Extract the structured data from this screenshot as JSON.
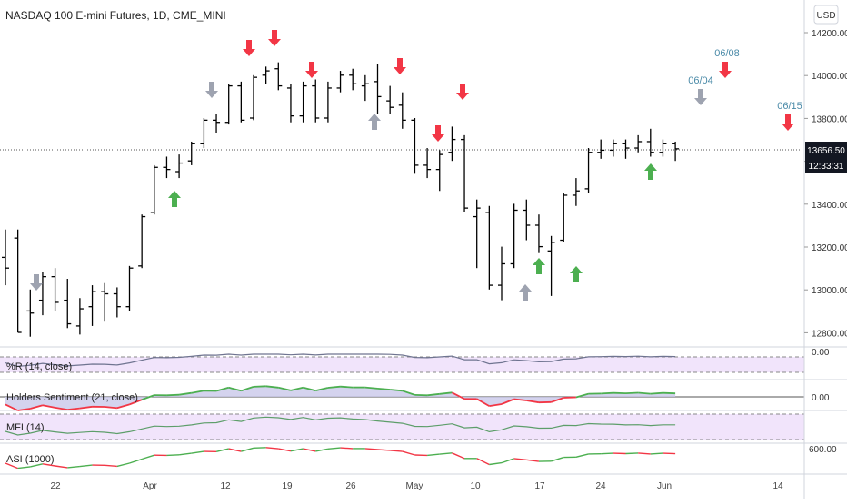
{
  "header": {
    "symbol_title": "NASDAQ 100 E-mini Futures, 1D, CME_MINI",
    "currency_button": "USD"
  },
  "colors": {
    "bull_arrow": "#4caf50",
    "bear_arrow": "#f23645",
    "neutral_arrow": "#9ea3b0",
    "price_bar": "#000000",
    "price_badge": "#131722",
    "annotation_text": "#4a8aa8",
    "pane_fill": "#f1e4fb",
    "holders_fill": "#c9c8ea",
    "line_up": "#4caf50",
    "line_down": "#f23645",
    "indicator_line": "#6f7490",
    "mfi_line": "#5d9e6a"
  },
  "price_axis": {
    "ticks": [
      "14200.00",
      "14000.00",
      "13800.00",
      "13600.00",
      "13400.00",
      "13200.00",
      "13000.00",
      "12800.00"
    ],
    "last_price": "13656.50",
    "countdown": "12:33:31"
  },
  "time_axis": {
    "labels": [
      "22",
      "Apr",
      "12",
      "19",
      "26",
      "May",
      "10",
      "17",
      "24",
      "Jun",
      "14"
    ]
  },
  "annotations": [
    {
      "label": "06/08",
      "type": "bear"
    },
    {
      "label": "06/04",
      "type": "neutral"
    },
    {
      "label": "06/15",
      "type": "bear"
    }
  ],
  "indicators": [
    {
      "name": "%R (14, close)",
      "axis_value": "0.00"
    },
    {
      "name": "Holders Sentiment (21, close)",
      "axis_value": "0.00"
    },
    {
      "name": "MFI (14)",
      "axis_value": ""
    },
    {
      "name": "ASI (1000)",
      "axis_value": "600.00"
    }
  ],
  "chart_data": {
    "type": "ohlc",
    "series": [
      {
        "date": "Mar 17",
        "open": 13150,
        "high": 13280,
        "low": 13020,
        "close": 13100
      },
      {
        "date": "Mar 18",
        "open": 13240,
        "high": 13280,
        "low": 12800,
        "close": 12800
      },
      {
        "date": "Mar 19",
        "open": 12900,
        "high": 13000,
        "low": 12780,
        "close": 12890
      },
      {
        "date": "Mar 22",
        "open": 12950,
        "high": 13080,
        "low": 12880,
        "close": 13060
      },
      {
        "date": "Mar 23",
        "open": 13060,
        "high": 13100,
        "low": 12900,
        "close": 12940
      },
      {
        "date": "Mar 24",
        "open": 12950,
        "high": 13050,
        "low": 12820,
        "close": 12840
      },
      {
        "date": "Mar 25",
        "open": 12830,
        "high": 12960,
        "low": 12790,
        "close": 12910
      },
      {
        "date": "Mar 26",
        "open": 12920,
        "high": 13020,
        "low": 12830,
        "close": 12990
      },
      {
        "date": "Mar 29",
        "open": 12990,
        "high": 13030,
        "low": 12850,
        "close": 12980
      },
      {
        "date": "Mar 30",
        "open": 12980,
        "high": 13010,
        "low": 12870,
        "close": 12920
      },
      {
        "date": "Mar 31",
        "open": 12920,
        "high": 13110,
        "low": 12900,
        "close": 13100
      },
      {
        "date": "Apr 1",
        "open": 13110,
        "high": 13350,
        "low": 13100,
        "close": 13340
      },
      {
        "date": "Apr 5",
        "open": 13360,
        "high": 13580,
        "low": 13350,
        "close": 13570
      },
      {
        "date": "Apr 6",
        "open": 13570,
        "high": 13620,
        "low": 13520,
        "close": 13560
      },
      {
        "date": "Apr 7",
        "open": 13550,
        "high": 13630,
        "low": 13520,
        "close": 13590
      },
      {
        "date": "Apr 8",
        "open": 13600,
        "high": 13690,
        "low": 13580,
        "close": 13680
      },
      {
        "date": "Apr 9",
        "open": 13680,
        "high": 13800,
        "low": 13660,
        "close": 13790
      },
      {
        "date": "Apr 12",
        "open": 13790,
        "high": 13820,
        "low": 13730,
        "close": 13780
      },
      {
        "date": "Apr 13",
        "open": 13780,
        "high": 13960,
        "low": 13770,
        "close": 13950
      },
      {
        "date": "Apr 14",
        "open": 13950,
        "high": 13970,
        "low": 13780,
        "close": 13790
      },
      {
        "date": "Apr 15",
        "open": 13800,
        "high": 14000,
        "low": 13790,
        "close": 13990
      },
      {
        "date": "Apr 16",
        "open": 14000,
        "high": 14040,
        "low": 13960,
        "close": 14020
      },
      {
        "date": "Apr 19",
        "open": 14030,
        "high": 14060,
        "low": 13930,
        "close": 13950
      },
      {
        "date": "Apr 20",
        "open": 13940,
        "high": 13960,
        "low": 13780,
        "close": 13810
      },
      {
        "date": "Apr 21",
        "open": 13810,
        "high": 13970,
        "low": 13780,
        "close": 13950
      },
      {
        "date": "Apr 22",
        "open": 13950,
        "high": 13980,
        "low": 13780,
        "close": 13800
      },
      {
        "date": "Apr 23",
        "open": 13800,
        "high": 13970,
        "low": 13780,
        "close": 13940
      },
      {
        "date": "Apr 26",
        "open": 13940,
        "high": 14020,
        "low": 13920,
        "close": 14000
      },
      {
        "date": "Apr 27",
        "open": 14000,
        "high": 14030,
        "low": 13930,
        "close": 13960
      },
      {
        "date": "Apr 28",
        "open": 13950,
        "high": 14000,
        "low": 13880,
        "close": 13960
      },
      {
        "date": "Apr 29",
        "open": 13970,
        "high": 14050,
        "low": 13820,
        "close": 13900
      },
      {
        "date": "Apr 30",
        "open": 13880,
        "high": 13950,
        "low": 13820,
        "close": 13850
      },
      {
        "date": "May 3",
        "open": 13860,
        "high": 13920,
        "low": 13750,
        "close": 13790
      },
      {
        "date": "May 4",
        "open": 13790,
        "high": 13800,
        "low": 13540,
        "close": 13580
      },
      {
        "date": "May 5",
        "open": 13580,
        "high": 13660,
        "low": 13520,
        "close": 13560
      },
      {
        "date": "May 6",
        "open": 13560,
        "high": 13650,
        "low": 13460,
        "close": 13630
      },
      {
        "date": "May 7",
        "open": 13640,
        "high": 13760,
        "low": 13600,
        "close": 13700
      },
      {
        "date": "May 10",
        "open": 13700,
        "high": 13720,
        "low": 13360,
        "close": 13380
      },
      {
        "date": "May 11",
        "open": 13340,
        "high": 13420,
        "low": 13100,
        "close": 13380
      },
      {
        "date": "May 12",
        "open": 13360,
        "high": 13390,
        "low": 13000,
        "close": 13020
      },
      {
        "date": "May 13",
        "open": 13020,
        "high": 13200,
        "low": 12950,
        "close": 13120
      },
      {
        "date": "May 14",
        "open": 13120,
        "high": 13400,
        "low": 13100,
        "close": 13370
      },
      {
        "date": "May 17",
        "open": 13370,
        "high": 13420,
        "low": 13230,
        "close": 13300
      },
      {
        "date": "May 18",
        "open": 13300,
        "high": 13350,
        "low": 13170,
        "close": 13200
      },
      {
        "date": "May 19",
        "open": 13180,
        "high": 13250,
        "low": 12970,
        "close": 13220
      },
      {
        "date": "May 20",
        "open": 13230,
        "high": 13450,
        "low": 13220,
        "close": 13440
      },
      {
        "date": "May 21",
        "open": 13440,
        "high": 13520,
        "low": 13390,
        "close": 13460
      },
      {
        "date": "May 24",
        "open": 13470,
        "high": 13660,
        "low": 13450,
        "close": 13640
      },
      {
        "date": "May 25",
        "open": 13640,
        "high": 13700,
        "low": 13610,
        "close": 13650
      },
      {
        "date": "May 26",
        "open": 13650,
        "high": 13700,
        "low": 13620,
        "close": 13680
      },
      {
        "date": "May 27",
        "open": 13680,
        "high": 13700,
        "low": 13610,
        "close": 13660
      },
      {
        "date": "May 28",
        "open": 13660,
        "high": 13720,
        "low": 13640,
        "close": 13690
      },
      {
        "date": "Jun 1",
        "open": 13690,
        "high": 13750,
        "low": 13620,
        "close": 13640
      },
      {
        "date": "Jun 2",
        "open": 13640,
        "high": 13700,
        "low": 13620,
        "close": 13680
      },
      {
        "date": "Jun 3",
        "open": 13680,
        "high": 13690,
        "low": 13600,
        "close": 13656.5
      }
    ]
  }
}
